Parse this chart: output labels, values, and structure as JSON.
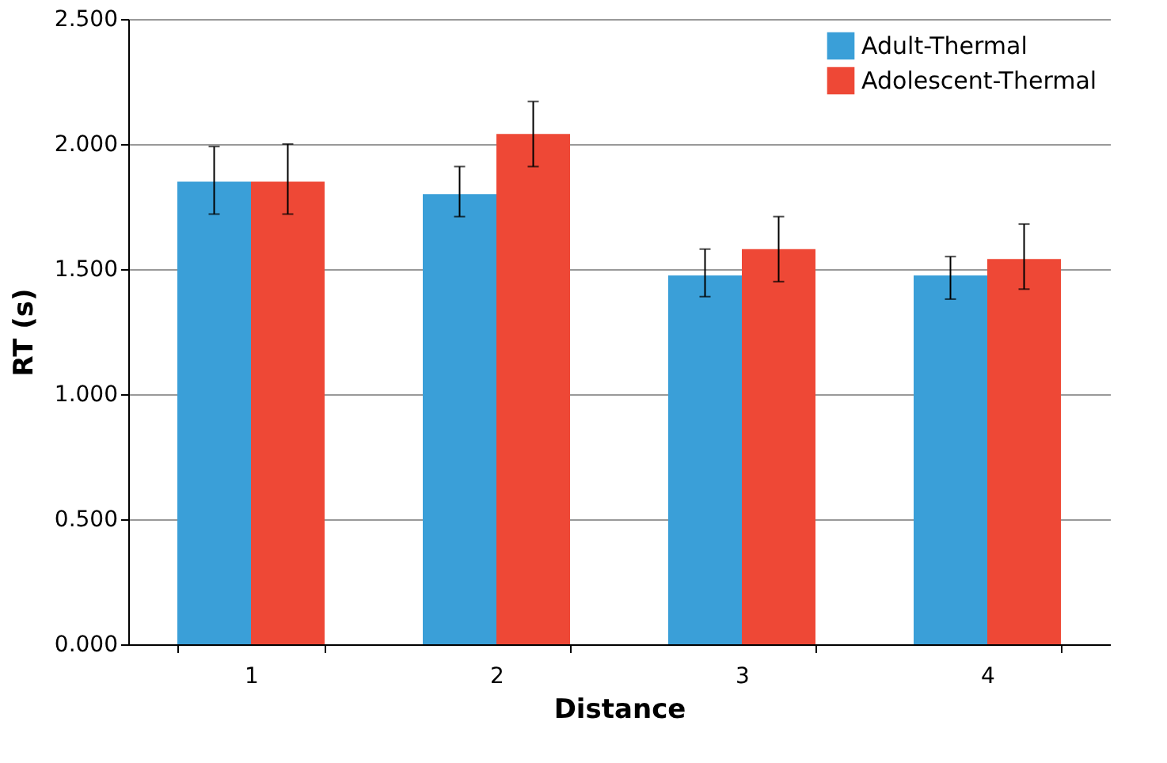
{
  "chart_data": {
    "type": "bar",
    "xlabel": "Distance",
    "ylabel": "RT (s)",
    "categories": [
      "1",
      "2",
      "3",
      "4"
    ],
    "series": [
      {
        "name": "Adult-Thermal",
        "color": "#3a9fd8",
        "values": [
          1.85,
          1.8,
          1.475,
          1.475
        ],
        "errors": [
          [
            1.72,
            1.99
          ],
          [
            1.71,
            1.91
          ],
          [
            1.39,
            1.58
          ],
          [
            1.38,
            1.55
          ]
        ]
      },
      {
        "name": "Adolescent-Thermal",
        "color": "#ee4836",
        "values": [
          1.85,
          2.04,
          1.58,
          1.54
        ],
        "errors": [
          [
            1.72,
            2.0
          ],
          [
            1.91,
            2.17
          ],
          [
            1.45,
            1.71
          ],
          [
            1.42,
            1.68
          ]
        ]
      }
    ],
    "ylim": [
      0,
      2.5
    ],
    "yticks": [
      {
        "value": 0,
        "label": "0.000"
      },
      {
        "value": 0.5,
        "label": "0.500"
      },
      {
        "value": 1,
        "label": "1.000"
      },
      {
        "value": 1.5,
        "label": "1.500"
      },
      {
        "value": 2,
        "label": "2.000"
      },
      {
        "value": 2.5,
        "label": "2.500"
      }
    ],
    "grid": "y",
    "legend": "top right"
  }
}
